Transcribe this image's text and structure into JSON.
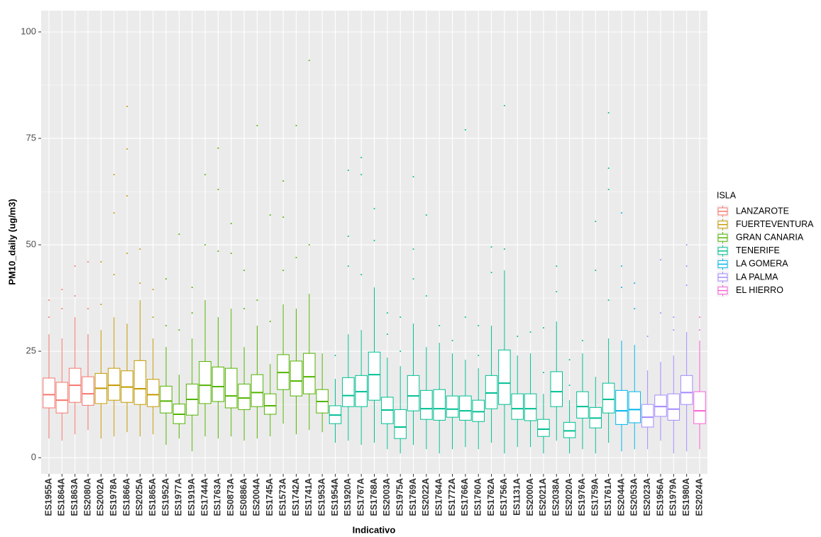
{
  "chart_data": {
    "type": "boxplot",
    "x_label": "Indicativo",
    "y_label": "PM10_daily (ug/m3)",
    "legend_title": "ISLA",
    "legend_position": "right",
    "grid": true,
    "ylim": [
      -3.8,
      105
    ],
    "yticks": [
      0,
      25,
      50,
      75,
      100
    ],
    "series": [
      {
        "name": "LANZAROTE",
        "color": "#F8766D",
        "categories": [
          "ES1955A",
          "ES1864A",
          "ES1863A",
          "ES2080A"
        ],
        "low": [
          4.5,
          4,
          5.5,
          6.5
        ],
        "q1": [
          11.7,
          10.5,
          13,
          12.3
        ],
        "median": [
          14.8,
          13.5,
          17,
          15
        ],
        "q3": [
          18.7,
          17.7,
          21,
          19
        ],
        "high": [
          29,
          28,
          33,
          29
        ],
        "outliers": [
          [
            33,
            37
          ],
          [
            35,
            39.5
          ],
          [
            38,
            45
          ],
          [
            35,
            46
          ]
        ]
      },
      {
        "name": "FUERTEVENTURA",
        "color": "#C49A00",
        "categories": [
          "ES2002A",
          "ES1978A",
          "ES1866A",
          "ES2025A",
          "ES1865A"
        ],
        "low": [
          4.5,
          5,
          6,
          5,
          5.5
        ],
        "q1": [
          12.7,
          13.5,
          13,
          12.5,
          12
        ],
        "median": [
          16.3,
          17,
          16.6,
          16.2,
          14.8
        ],
        "q3": [
          19.8,
          21,
          20.4,
          22.8,
          18.4
        ],
        "high": [
          30,
          33,
          31.5,
          37,
          28
        ],
        "outliers": [
          [
            36,
            46
          ],
          [
            43,
            57.5,
            66.5
          ],
          [
            48,
            61.5,
            72.5,
            82.5
          ],
          [
            41,
            49
          ],
          [
            33,
            39.5
          ]
        ]
      },
      {
        "name": "GRAN CANARIA",
        "color": "#53B400",
        "categories": [
          "ES1952A",
          "ES1977A",
          "ES1919A",
          "ES1744A",
          "ES1763A",
          "ES0873A",
          "ES0886A",
          "ES2004A",
          "ES1745A",
          "ES1573A",
          "ES1742A",
          "ES1741A",
          "ES1953A"
        ],
        "low": [
          3,
          4.5,
          1.5,
          5,
          4.5,
          5,
          4,
          4.5,
          5,
          8,
          5.5,
          6.5,
          6
        ],
        "q1": [
          10.5,
          8,
          10,
          12.7,
          13.2,
          11.7,
          11.3,
          12,
          10.2,
          16,
          14.5,
          15,
          10.5
        ],
        "median": [
          13.3,
          10.2,
          13.7,
          17,
          16.7,
          14.5,
          14,
          15.3,
          12.2,
          20,
          18,
          19,
          13.2
        ],
        "q3": [
          16.8,
          12.6,
          17.3,
          22.6,
          21.3,
          21,
          17.3,
          19.5,
          15,
          24.2,
          22.7,
          24.5,
          16
        ],
        "high": [
          26,
          19.5,
          28,
          37,
          33,
          35,
          26,
          31,
          22,
          36,
          35,
          38.5,
          24.5
        ],
        "outliers": [
          [
            31,
            42
          ],
          [
            30,
            52.5
          ],
          [
            34,
            40
          ],
          [
            50,
            66.5
          ],
          [
            48.5,
            63,
            72.7
          ],
          [
            48,
            55
          ],
          [
            35,
            44
          ],
          [
            37,
            78
          ],
          [
            32,
            57
          ],
          [
            44,
            56.5,
            65
          ],
          [
            47,
            78
          ],
          [
            50,
            93.3
          ],
          []
        ]
      },
      {
        "name": "TENERIFE",
        "color": "#00C094",
        "categories": [
          "ES1954A",
          "ES1920A",
          "ES1767A",
          "ES1768A",
          "ES2003A",
          "ES1975A",
          "ES1769A",
          "ES2022A",
          "ES1764A",
          "ES1772A",
          "ES1766A",
          "ES1760A",
          "ES1762A",
          "ES1756A",
          "ES1131A",
          "ES2000A",
          "ES2021A",
          "ES2038A",
          "ES2020A",
          "ES1976A",
          "ES1759A",
          "ES1761A"
        ],
        "low": [
          3.5,
          4,
          3,
          3.5,
          2,
          1,
          3,
          2,
          1,
          2,
          2.5,
          2,
          3.5,
          1,
          2.5,
          2.5,
          1,
          4,
          1,
          2,
          1,
          3.5
        ],
        "q1": [
          8,
          12,
          12,
          13.5,
          8,
          4.5,
          11,
          9,
          8.8,
          9.5,
          8.8,
          8.5,
          11.5,
          12.5,
          9,
          8.7,
          5,
          12,
          4.7,
          9.3,
          7,
          10.5
        ],
        "median": [
          10,
          14.6,
          15.5,
          19.5,
          11.2,
          7.2,
          14.5,
          11.5,
          11.5,
          11.4,
          11,
          10.8,
          15.2,
          17.5,
          11.5,
          11.5,
          6.7,
          15.5,
          6.3,
          12,
          9.3,
          13.7
        ],
        "q3": [
          12.2,
          18.8,
          19.3,
          24.8,
          14.2,
          11.3,
          19.3,
          15.8,
          16,
          14.5,
          14.5,
          13.5,
          19.3,
          25.3,
          15,
          15,
          9,
          20.2,
          8.3,
          15.5,
          11.8,
          17.5
        ],
        "high": [
          18.5,
          29,
          30,
          40,
          23.5,
          21.5,
          31.5,
          26,
          27,
          24.5,
          23,
          21,
          31,
          44,
          24,
          24.5,
          15,
          32,
          13.5,
          24.5,
          19,
          28
        ],
        "outliers": [
          [
            24
          ],
          [
            45,
            52,
            67.5
          ],
          [
            43,
            66.5,
            70.5
          ],
          [
            51,
            58.5
          ],
          [
            29,
            34
          ],
          [
            25,
            33
          ],
          [
            42,
            49,
            66
          ],
          [
            38,
            57
          ],
          [
            31
          ],
          [
            27.5
          ],
          [
            33,
            77
          ],
          [
            24,
            31
          ],
          [
            43.5,
            49.5
          ],
          [
            49,
            82.7
          ],
          [
            28.5
          ],
          [
            29.5
          ],
          [
            20,
            30.5
          ],
          [
            39,
            45
          ],
          [
            17,
            23
          ],
          [
            27.5
          ],
          [
            44,
            55.5
          ],
          [
            37,
            63,
            68,
            81
          ]
        ]
      },
      {
        "name": "LA GOMERA",
        "color": "#00B6EB",
        "categories": [
          "ES2044A",
          "ES2053A"
        ],
        "low": [
          1.5,
          2
        ],
        "q1": [
          7.8,
          8.2
        ],
        "median": [
          11,
          11.3
        ],
        "q3": [
          15.8,
          15.5
        ],
        "high": [
          27.5,
          26.5
        ],
        "outliers": [
          [
            40,
            45,
            57.5
          ],
          [
            35,
            41
          ]
        ]
      },
      {
        "name": "LA PALMA",
        "color": "#A58AFF",
        "categories": [
          "ES2023A",
          "ES1956A",
          "ES1979A",
          "ES1980A"
        ],
        "low": [
          2,
          4,
          1,
          1.5
        ],
        "q1": [
          7.2,
          9.7,
          8.8,
          12.5
        ],
        "median": [
          9.5,
          12,
          11.4,
          15.3
        ],
        "q3": [
          12.5,
          14.7,
          15,
          19.3
        ],
        "high": [
          20.5,
          22.5,
          24,
          29.5
        ],
        "outliers": [
          [
            28.5
          ],
          [
            34,
            46.5
          ],
          [
            30,
            33
          ],
          [
            40.5,
            45,
            50
          ]
        ]
      },
      {
        "name": "EL HIERRO",
        "color": "#FB61D7",
        "categories": [
          "ES2024A"
        ],
        "low": [
          2
        ],
        "q1": [
          8
        ],
        "median": [
          11
        ],
        "q3": [
          15.5
        ],
        "high": [
          27.5
        ],
        "outliers": [
          [
            30,
            33
          ]
        ]
      }
    ]
  }
}
